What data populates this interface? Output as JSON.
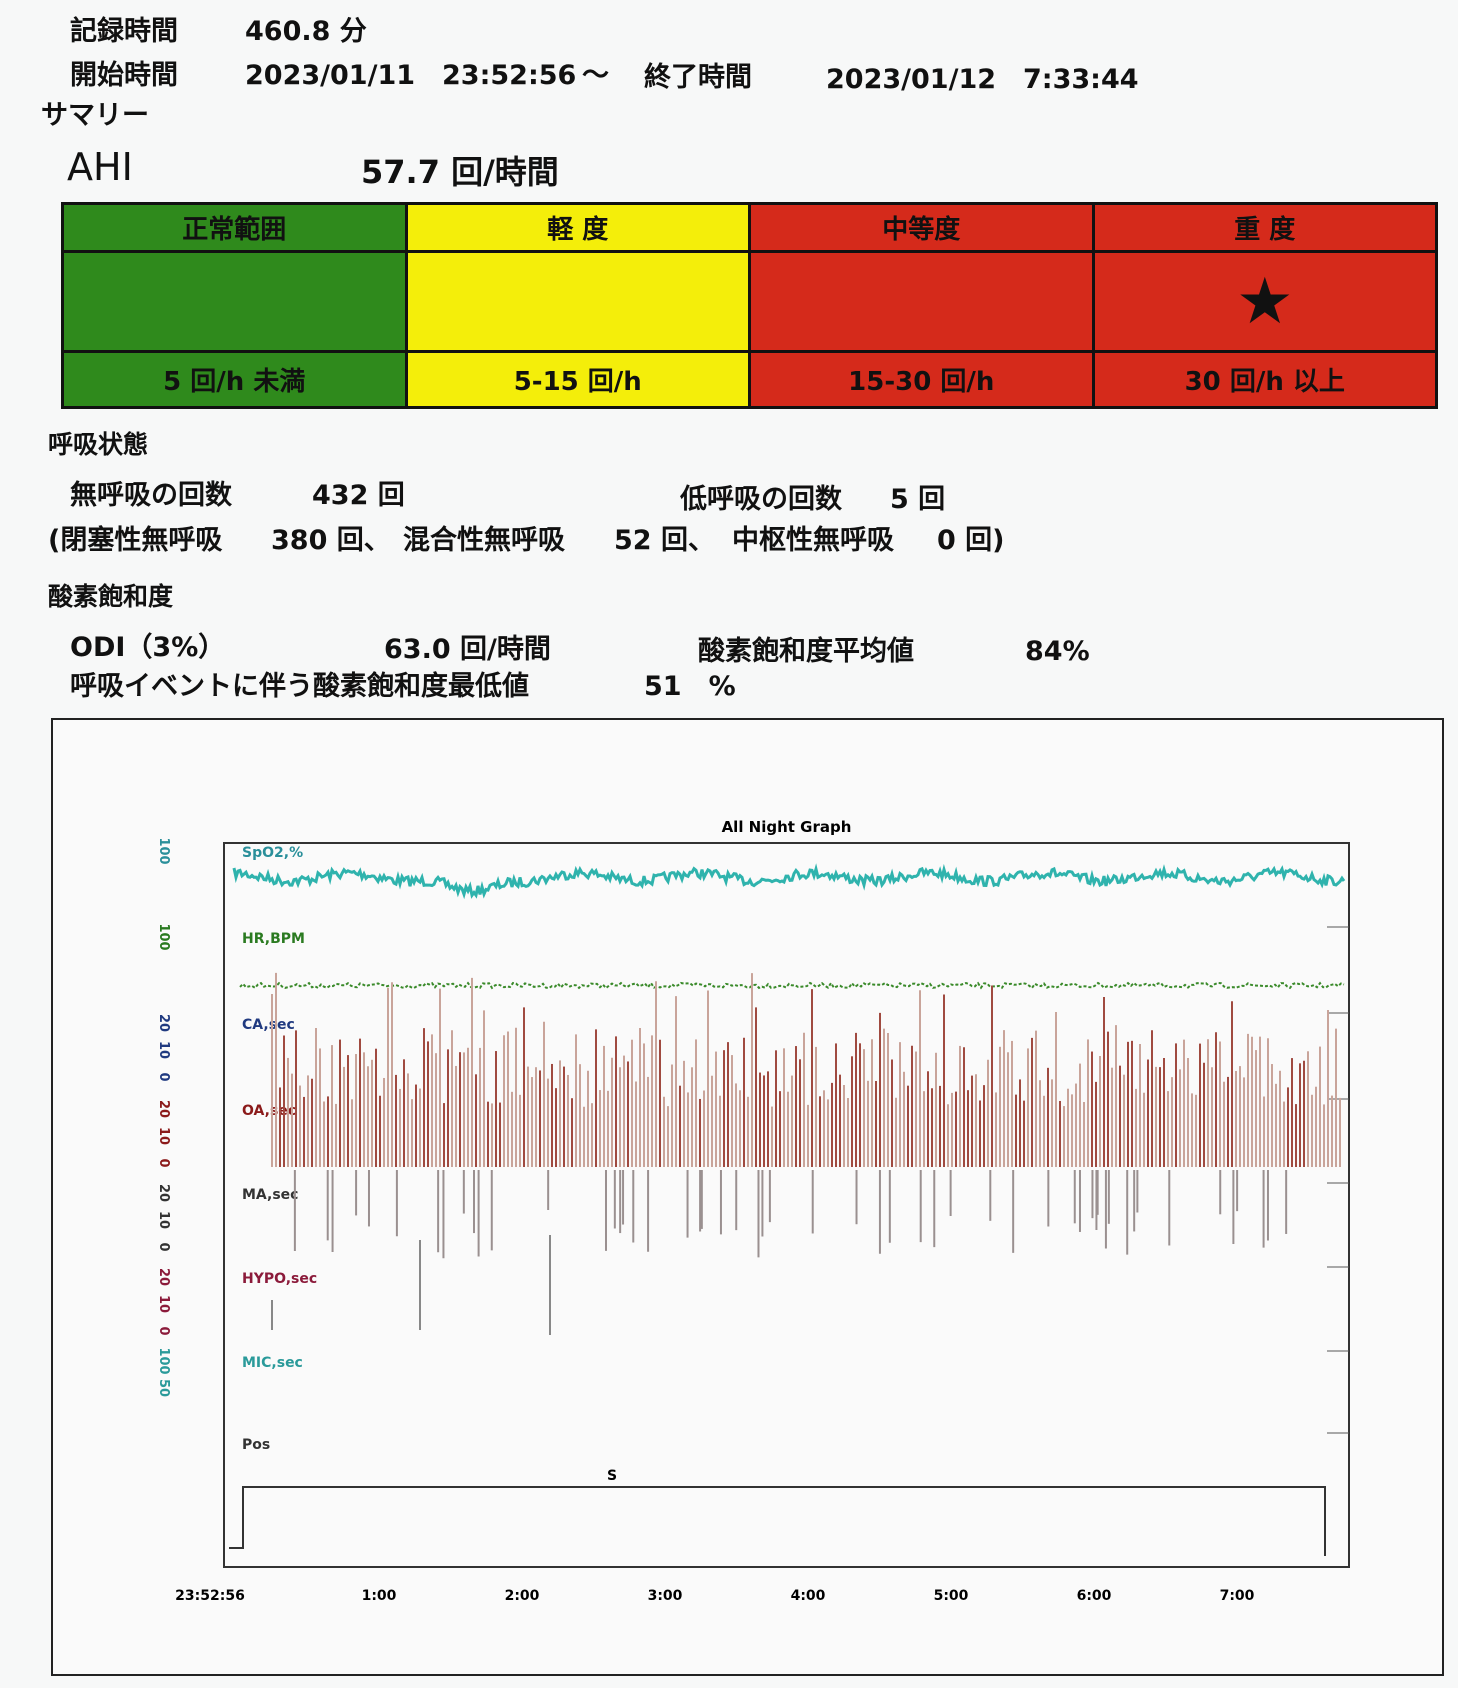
{
  "header": {
    "record_label": "記録時間",
    "record_value": "460.8 分",
    "start_label": "開始時間",
    "start_value": "2023/01/11　23:52:56",
    "tilde": "～",
    "end_label": "終了時間",
    "end_value": "2023/01/12　7:33:44"
  },
  "summary": {
    "title": "サマリー",
    "ahi_label": "AHI",
    "ahi_value": "57.7 回/時間"
  },
  "severity": {
    "headers": [
      "正常範囲",
      "軽 度",
      "中等度",
      "重 度"
    ],
    "ranges": [
      "5 回/h 未満",
      "5-15 回/h",
      "15-30 回/h",
      "30 回/h 以上"
    ],
    "marker": "★"
  },
  "respiration": {
    "title": "呼吸状態",
    "apnea_label": "無呼吸の回数",
    "apnea_value": "432 回",
    "hypopnea_label": "低呼吸の回数",
    "hypopnea_value": "5 回",
    "obstructive_label": "(閉塞性無呼吸",
    "obstructive_value": "380 回、",
    "mixed_label": "混合性無呼吸",
    "mixed_value": "52 回、",
    "central_label": "中枢性無呼吸",
    "central_value": "0 回)"
  },
  "oxygen": {
    "title": "酸素飽和度",
    "odi_label": "ODI（3%）",
    "odi_value": "63.0 回/時間",
    "mean_label": "酸素飽和度平均値",
    "mean_value": "84%",
    "min_label": "呼吸イベントに伴う酸素飽和度最低値",
    "min_value": "51　%"
  },
  "graph": {
    "title": "All Night Graph",
    "channels": [
      {
        "label": "SpO2,%",
        "ticks": [
          "100"
        ]
      },
      {
        "label": "HR,BPM",
        "ticks": [
          "100"
        ]
      },
      {
        "label": "CA,sec",
        "ticks": [
          "20",
          "10",
          "0"
        ]
      },
      {
        "label": "OA,sec",
        "ticks": [
          "20",
          "10",
          "0"
        ]
      },
      {
        "label": "MA,sec",
        "ticks": [
          "20",
          "10",
          "0"
        ]
      },
      {
        "label": "HYPO,sec",
        "ticks": [
          "20",
          "10",
          "0"
        ]
      },
      {
        "label": "MIC,sec",
        "ticks": [
          "100",
          "50"
        ]
      },
      {
        "label": "Pos",
        "ticks": []
      }
    ],
    "x_labels": [
      "23:52:56",
      "1:00",
      "2:00",
      "3:00",
      "4:00",
      "5:00",
      "6:00",
      "7:00"
    ],
    "pos_marker": "S"
  }
}
